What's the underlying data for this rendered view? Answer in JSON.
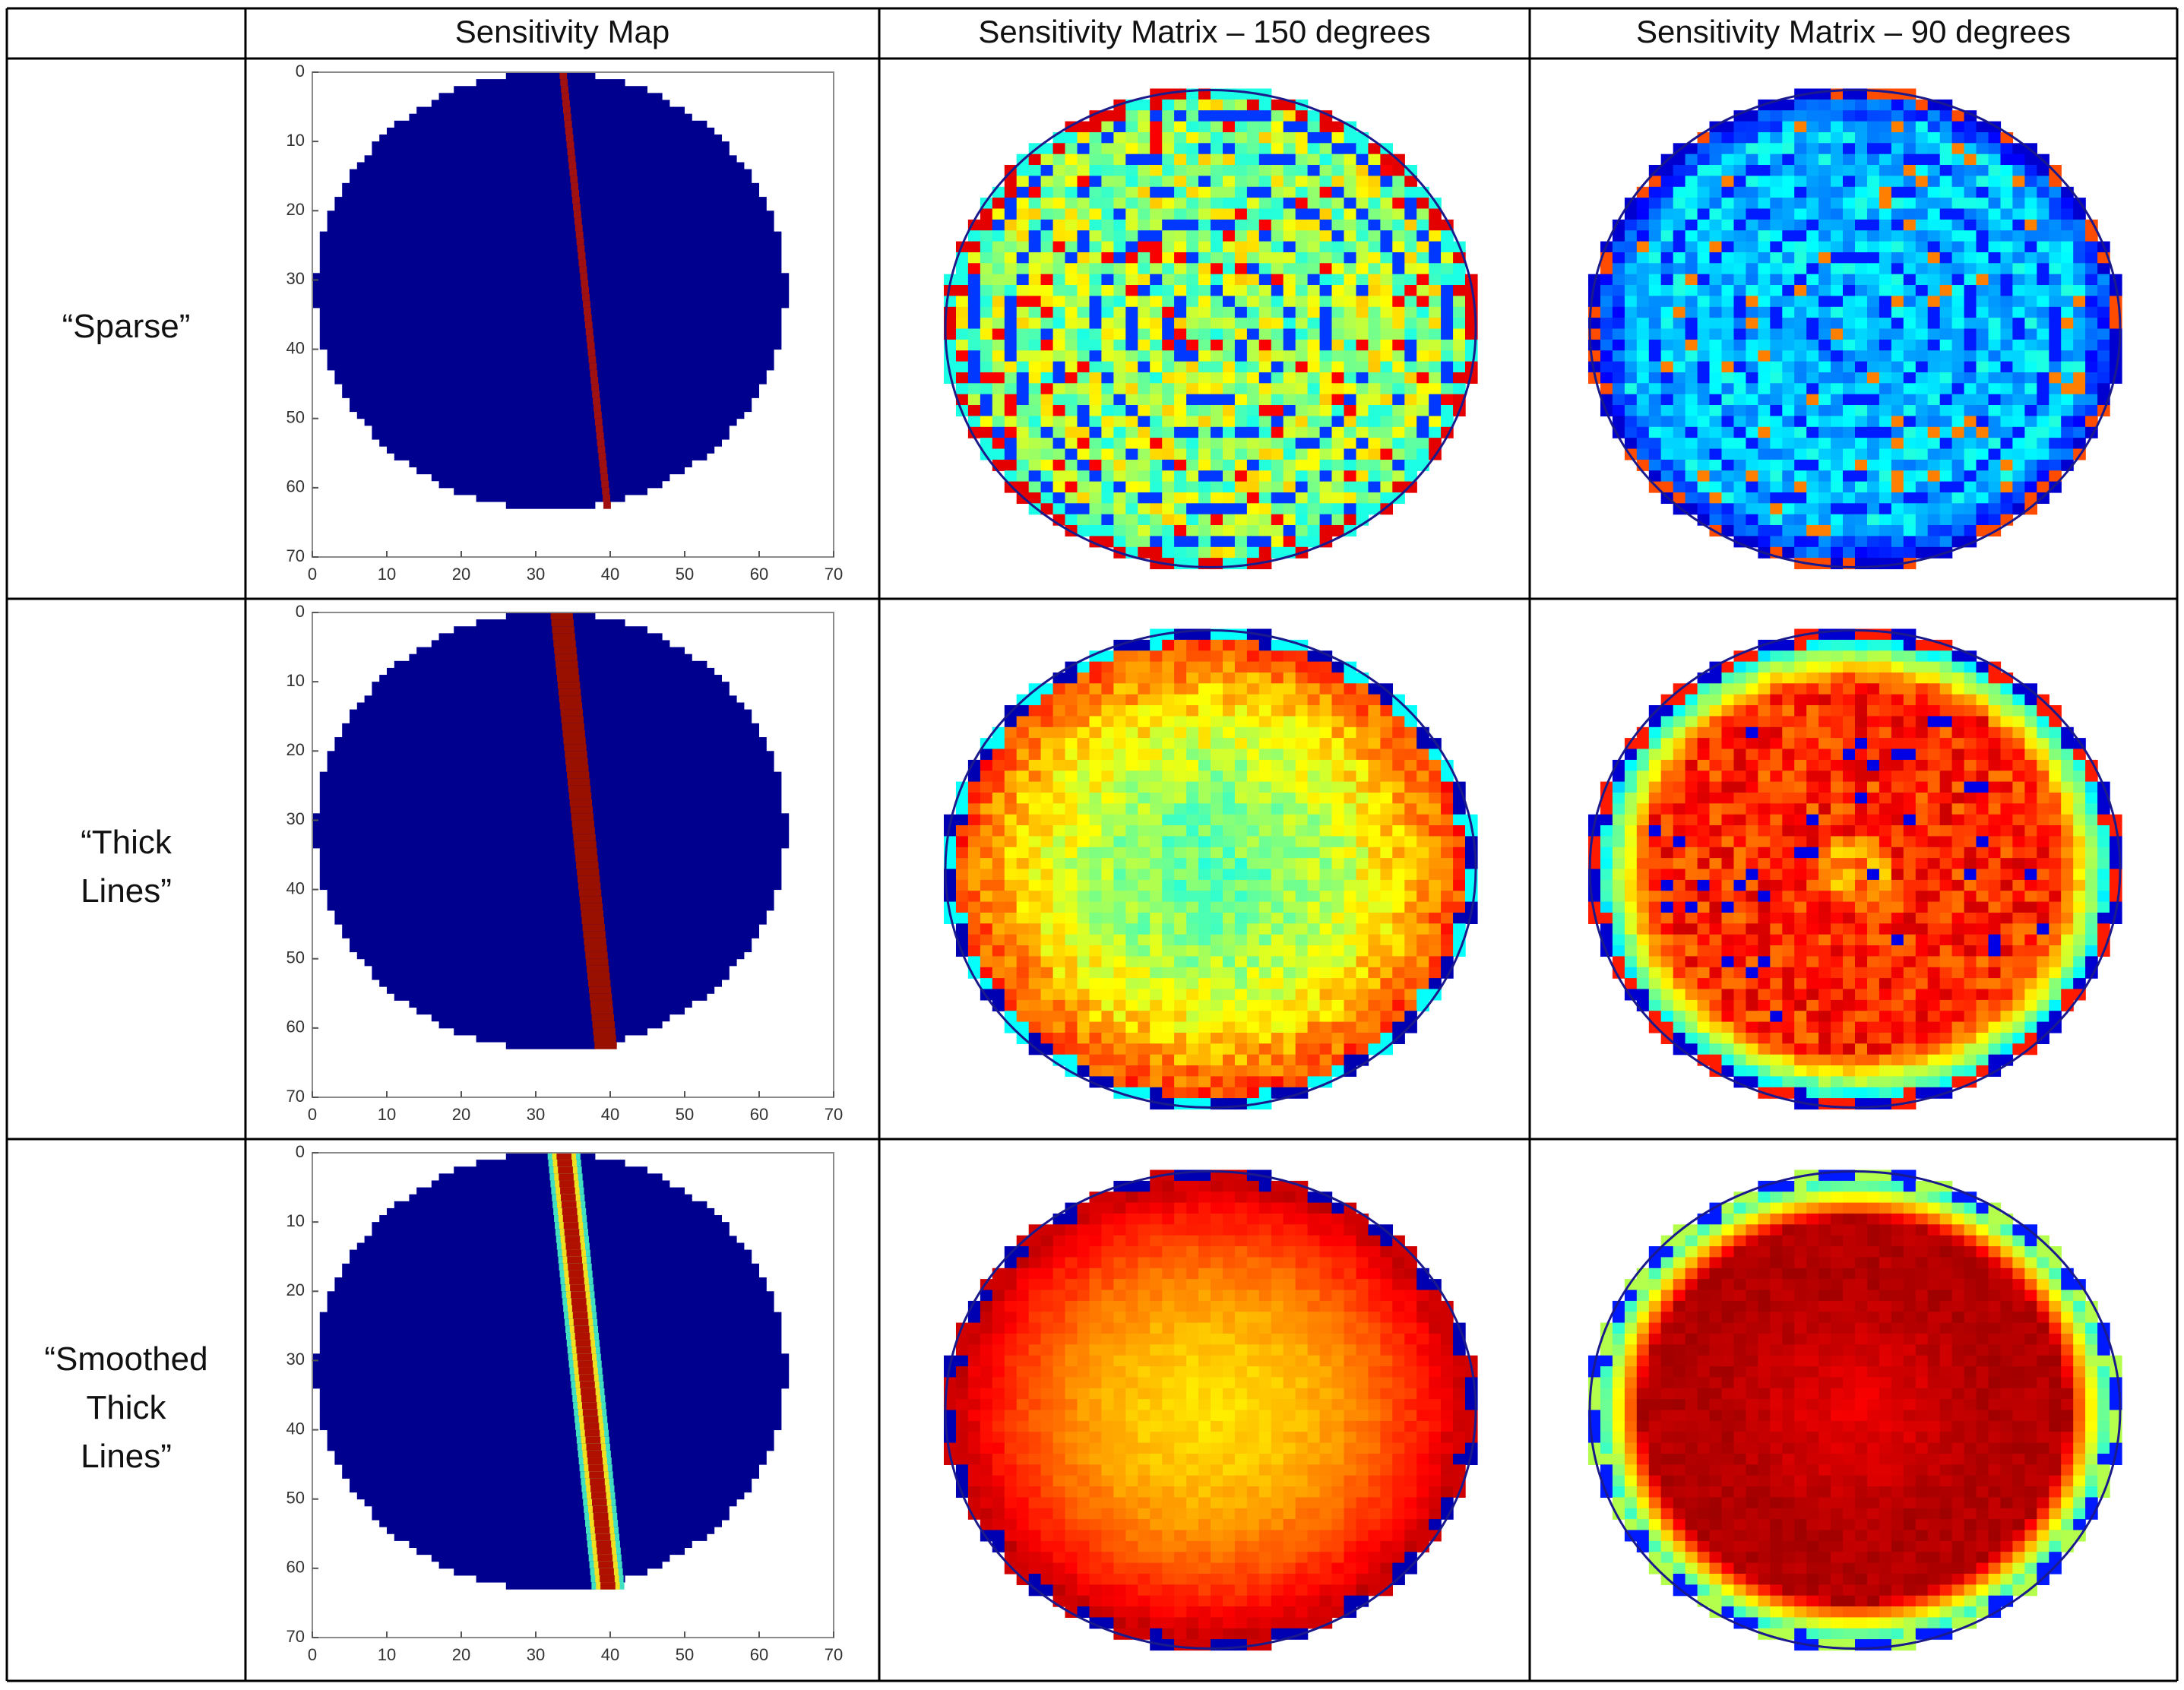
{
  "table": {
    "header": [
      "Sensitivity Map",
      "Sensitivity Matrix – 150 degrees",
      "Sensitivity Matrix – 90 degrees"
    ],
    "rows": [
      {
        "label": [
          "“Sparse”"
        ],
        "map": {
          "xlim": [
            0,
            70
          ],
          "ylim": [
            0,
            70
          ],
          "xticks": [
            0,
            10,
            20,
            30,
            40,
            50,
            60,
            70
          ],
          "yticks": [
            0,
            10,
            20,
            30,
            40,
            50,
            60,
            70
          ]
        }
      },
      {
        "label": [
          "“Thick",
          "Lines”"
        ],
        "map": {
          "xlim": [
            0,
            70
          ],
          "ylim": [
            0,
            70
          ],
          "xticks": [
            0,
            10,
            20,
            30,
            40,
            50,
            60,
            70
          ],
          "yticks": [
            0,
            10,
            20,
            30,
            40,
            50,
            60,
            70
          ]
        }
      },
      {
        "label": [
          "“Smoothed",
          "Thick",
          "Lines”"
        ],
        "map": {
          "xlim": [
            0,
            70
          ],
          "ylim": [
            0,
            70
          ],
          "xticks": [
            0,
            10,
            20,
            30,
            40,
            50,
            60,
            70
          ],
          "yticks": [
            0,
            10,
            20,
            30,
            40,
            50,
            60,
            70
          ]
        }
      }
    ]
  }
}
